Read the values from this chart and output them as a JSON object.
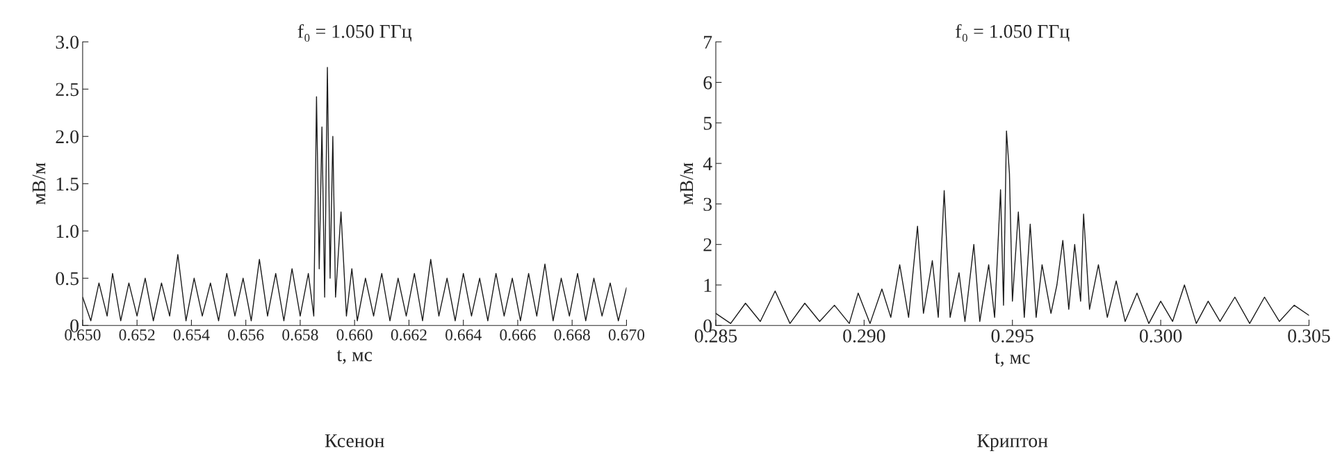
{
  "chart_data": [
    {
      "type": "line",
      "title": "f₀ = 1.050 ГГц",
      "xlabel": "t, мс",
      "ylabel": "мВ/м",
      "annotations": [
        "Ксенон"
      ],
      "xlim": [
        0.65,
        0.67
      ],
      "xticks": [
        {
          "value": 0.65,
          "label": "0.650"
        },
        0.652,
        0.654,
        0.656,
        0.658,
        {
          "value": 0.66,
          "label": "0.660"
        },
        0.662,
        0.664,
        0.666,
        0.668,
        {
          "value": 0.67,
          "label": "0.670"
        }
      ],
      "ylim": [
        0,
        3
      ],
      "yticks": [
        {
          "value": 0,
          "label": "0"
        },
        0.5,
        {
          "value": 1,
          "label": "1.0"
        },
        1.5,
        {
          "value": 2,
          "label": "2.0"
        },
        2.5,
        {
          "value": 3,
          "label": "3.0"
        }
      ],
      "grid": false,
      "legend": false,
      "marker": "none",
      "line_style": "solid",
      "series": [
        {
          "color": "#1a1a1a",
          "x": [
            0.65,
            0.6503,
            0.6506,
            0.6509,
            0.6511,
            0.6514,
            0.6517,
            0.652,
            0.6523,
            0.6526,
            0.6529,
            0.6532,
            0.6535,
            0.6538,
            0.6541,
            0.6544,
            0.6547,
            0.655,
            0.6553,
            0.6556,
            0.6559,
            0.6562,
            0.6565,
            0.6568,
            0.6571,
            0.6574,
            0.6577,
            0.658,
            0.6583,
            0.6585,
            0.6586,
            0.6587,
            0.6588,
            0.6589,
            0.659,
            0.6591,
            0.6592,
            0.6593,
            0.6595,
            0.6597,
            0.6599,
            0.6601,
            0.6604,
            0.6607,
            0.661,
            0.6613,
            0.6616,
            0.6619,
            0.6622,
            0.6625,
            0.6628,
            0.6631,
            0.6634,
            0.6637,
            0.664,
            0.6643,
            0.6646,
            0.6649,
            0.6652,
            0.6655,
            0.6658,
            0.6661,
            0.6664,
            0.6667,
            0.667,
            0.6673,
            0.6676,
            0.6679,
            0.6682,
            0.6685,
            0.6688,
            0.6691,
            0.6694,
            0.6697,
            0.67
          ],
          "values": [
            0.3,
            0.05,
            0.45,
            0.1,
            0.55,
            0.05,
            0.45,
            0.1,
            0.5,
            0.05,
            0.45,
            0.1,
            0.75,
            0.05,
            0.5,
            0.1,
            0.45,
            0.05,
            0.55,
            0.1,
            0.5,
            0.05,
            0.7,
            0.1,
            0.55,
            0.05,
            0.6,
            0.1,
            0.55,
            0.1,
            2.42,
            0.6,
            2.1,
            0.3,
            2.73,
            0.5,
            2.0,
            0.3,
            1.2,
            0.1,
            0.6,
            0.05,
            0.5,
            0.1,
            0.55,
            0.05,
            0.5,
            0.1,
            0.55,
            0.05,
            0.7,
            0.1,
            0.5,
            0.05,
            0.55,
            0.1,
            0.5,
            0.05,
            0.55,
            0.1,
            0.5,
            0.05,
            0.55,
            0.1,
            0.65,
            0.05,
            0.5,
            0.1,
            0.55,
            0.05,
            0.5,
            0.1,
            0.45,
            0.05,
            0.4
          ]
        }
      ]
    },
    {
      "type": "line",
      "title": "f₀ = 1.050 ГГц",
      "xlabel": "t, мс",
      "ylabel": "мВ/м",
      "annotations": [
        "Криптон"
      ],
      "xlim": [
        0.285,
        0.305
      ],
      "xticks": [
        0.285,
        {
          "value": 0.29,
          "label": "0.290"
        },
        0.295,
        {
          "value": 0.3,
          "label": "0.300"
        },
        0.305
      ],
      "ylim": [
        0,
        7
      ],
      "yticks": [
        0,
        1,
        2,
        3,
        4,
        5,
        6,
        7
      ],
      "grid": false,
      "legend": false,
      "marker": "none",
      "line_style": "solid",
      "series": [
        {
          "color": "#1a1a1a",
          "x": [
            0.285,
            0.2855,
            0.286,
            0.2865,
            0.287,
            0.2875,
            0.288,
            0.2885,
            0.289,
            0.2895,
            0.2898,
            0.2902,
            0.2906,
            0.2909,
            0.2912,
            0.2915,
            0.2918,
            0.292,
            0.2923,
            0.2925,
            0.2927,
            0.2929,
            0.2932,
            0.2934,
            0.2937,
            0.2939,
            0.2942,
            0.2944,
            0.2946,
            0.2947,
            0.2948,
            0.2949,
            0.295,
            0.2952,
            0.2954,
            0.2956,
            0.2958,
            0.296,
            0.2963,
            0.2965,
            0.2967,
            0.2969,
            0.2971,
            0.2973,
            0.2974,
            0.2976,
            0.2979,
            0.2982,
            0.2985,
            0.2988,
            0.2992,
            0.2996,
            0.3,
            0.3004,
            0.3008,
            0.3012,
            0.3016,
            0.302,
            0.3025,
            0.303,
            0.3035,
            0.304,
            0.3045,
            0.305
          ],
          "values": [
            0.3,
            0.05,
            0.55,
            0.1,
            0.85,
            0.05,
            0.55,
            0.1,
            0.5,
            0.05,
            0.8,
            0.05,
            0.9,
            0.2,
            1.5,
            0.2,
            2.45,
            0.3,
            1.6,
            0.2,
            3.33,
            0.2,
            1.3,
            0.1,
            2.0,
            0.1,
            1.5,
            0.2,
            3.35,
            0.5,
            4.8,
            3.75,
            0.6,
            2.8,
            0.2,
            2.5,
            0.2,
            1.5,
            0.3,
            1.0,
            2.1,
            0.4,
            2.0,
            0.6,
            2.75,
            0.4,
            1.5,
            0.2,
            1.1,
            0.1,
            0.8,
            0.05,
            0.6,
            0.1,
            1.0,
            0.05,
            0.6,
            0.1,
            0.7,
            0.05,
            0.7,
            0.1,
            0.5,
            0.25
          ]
        }
      ]
    }
  ]
}
